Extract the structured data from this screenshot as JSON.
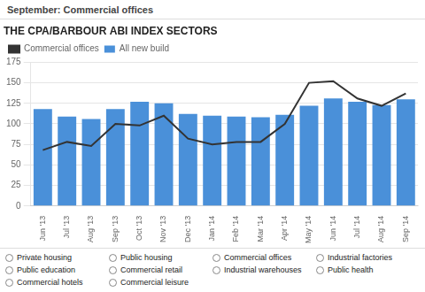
{
  "chart_data": {
    "type": "bar",
    "title": "THE CPA/BARBOUR ABI INDEX SECTORS",
    "subtitle": "September: Commercial offices",
    "categories": [
      "Jun '13",
      "Jul '13",
      "Aug '13",
      "Sep '13",
      "Oct '13",
      "Nov '13",
      "Dec '13",
      "Jan '14",
      "Feb '14",
      "Mar '14",
      "Apr '14",
      "May '14",
      "Jun '14",
      "Jul '14",
      "Aug '14",
      "Sep '14"
    ],
    "series": [
      {
        "name": "All new build",
        "type": "bar",
        "color": "#4a90d9",
        "values": [
          118,
          109,
          106,
          118,
          127,
          125,
          112,
          110,
          109,
          108,
          111,
          122,
          131,
          127,
          123,
          130
        ]
      },
      {
        "name": "Commercial offices",
        "type": "line",
        "color": "#333333",
        "values": [
          68,
          78,
          73,
          100,
          98,
          110,
          82,
          75,
          78,
          78,
          100,
          150,
          152,
          131,
          122,
          137
        ]
      }
    ],
    "ylim": [
      0,
      175
    ],
    "yticks": [
      0,
      25,
      50,
      75,
      100,
      125,
      150,
      175
    ],
    "grid": true,
    "legend": "top",
    "annotations": [
      "Private housing",
      "Public housing",
      "Commercial offices",
      "Industrial factories",
      "Public education",
      "Commercial retail",
      "Industrial warehouses",
      "Public health",
      "Commercial hotels",
      "Commercial leisure"
    ]
  }
}
